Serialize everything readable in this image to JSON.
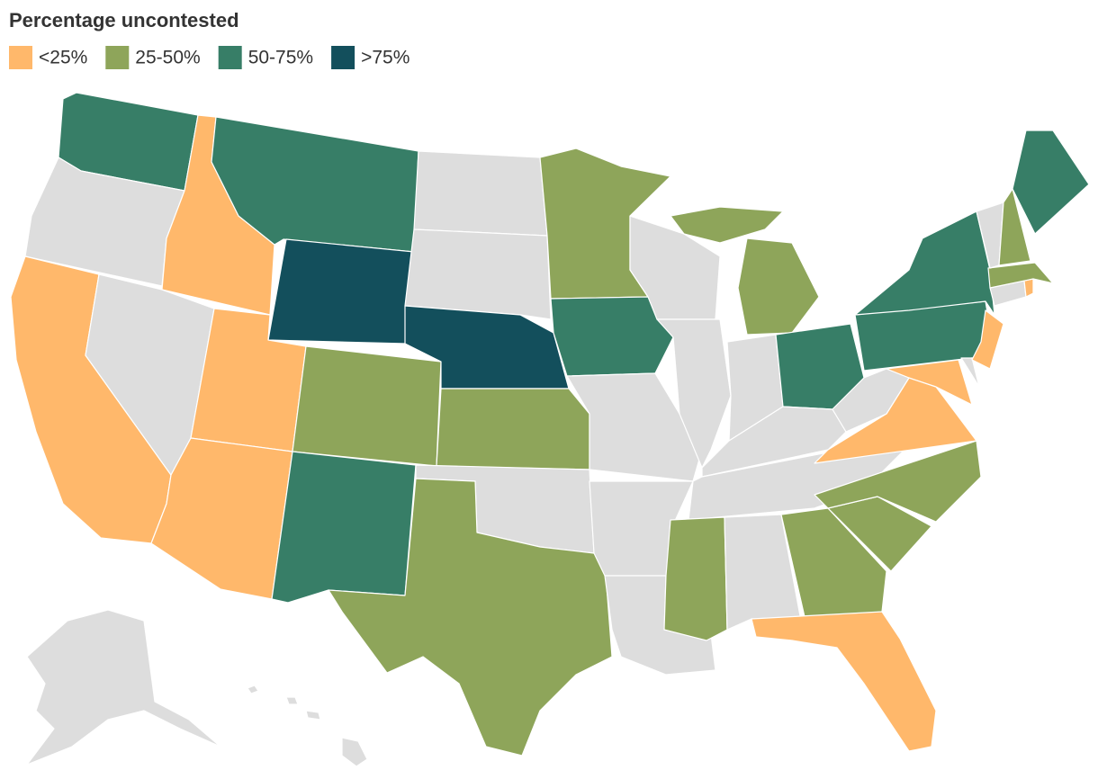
{
  "title": "Percentage uncontested",
  "legend": [
    {
      "label": "<25%",
      "color": "#ffb86b"
    },
    {
      "label": "25-50%",
      "color": "#8ea55a"
    },
    {
      "label": "50-75%",
      "color": "#377e67"
    },
    {
      "label": ">75%",
      "color": "#134f5c"
    }
  ]
}
